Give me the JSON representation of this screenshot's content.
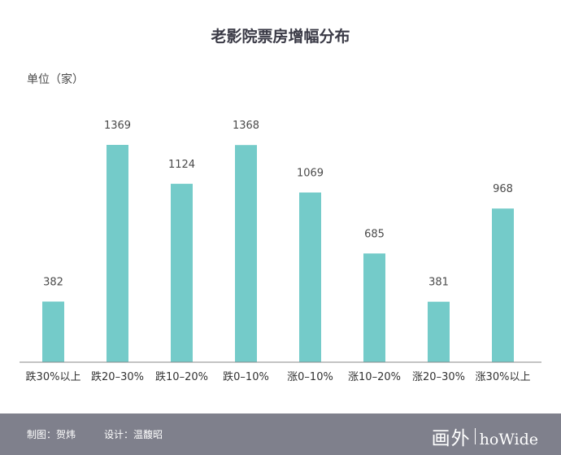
{
  "chart_data": {
    "type": "bar",
    "title": "老影院票房增幅分布",
    "ylabel": "单位（家）",
    "xlabel": "",
    "categories": [
      "跌30%以上",
      "跌20–30%",
      "跌10–20%",
      "跌0–10%",
      "涨0–10%",
      "涨10–20%",
      "涨20–30%",
      "涨30%以上"
    ],
    "values": [
      382,
      1369,
      1124,
      1368,
      1069,
      685,
      381,
      968
    ],
    "ylim": [
      0,
      1369
    ],
    "grid": false,
    "bar_color": "#74cbc9"
  },
  "footer": {
    "credit_chart": "制图：贺炜",
    "credit_design": "设计：温馥昭",
    "brand_cn": "画外",
    "brand_en": "hoWide"
  }
}
